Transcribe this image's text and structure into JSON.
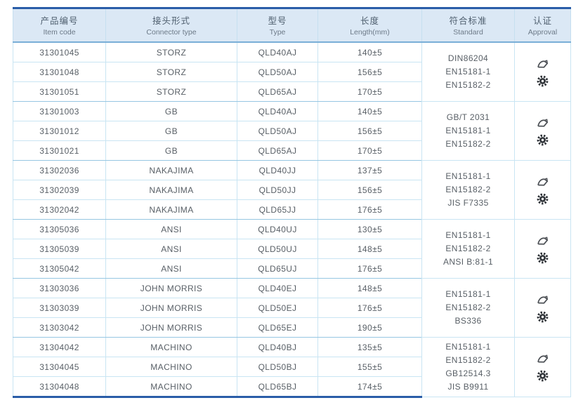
{
  "table": {
    "colors": {
      "frame_border": "#2a5da8",
      "header_bg": "#dbe8f5",
      "row_line": "#c9e5f3",
      "group_line": "#96c6e2",
      "text": "#585f66"
    },
    "header": {
      "columns": [
        {
          "zh": "产品编号",
          "en": "Item code"
        },
        {
          "zh": "接头形式",
          "en": "Connector type"
        },
        {
          "zh": "型号",
          "en": "Type"
        },
        {
          "zh": "长度",
          "en": "Length(mm)"
        },
        {
          "zh": "符合标准",
          "en": "Standard"
        },
        {
          "zh": "认证",
          "en": "Approval"
        }
      ]
    },
    "approval_icon_names": [
      "certificate-swoosh-icon",
      "rosette-seal-icon"
    ],
    "groups": [
      {
        "rows": [
          {
            "code": "31301045",
            "connector": "STORZ",
            "model": "QLD40AJ",
            "length": "140±5"
          },
          {
            "code": "31301048",
            "connector": "STORZ",
            "model": "QLD50AJ",
            "length": "156±5"
          },
          {
            "code": "31301051",
            "connector": "STORZ",
            "model": "QLD65AJ",
            "length": "170±5"
          }
        ],
        "standards": [
          "DIN86204",
          "EN15181-1",
          "EN15182-2"
        ]
      },
      {
        "rows": [
          {
            "code": "31301003",
            "connector": "GB",
            "model": "QLD40AJ",
            "length": "140±5"
          },
          {
            "code": "31301012",
            "connector": "GB",
            "model": "QLD50AJ",
            "length": "156±5"
          },
          {
            "code": "31301021",
            "connector": "GB",
            "model": "QLD65AJ",
            "length": "170±5"
          }
        ],
        "standards": [
          "GB/T 2031",
          "EN15181-1",
          "EN15182-2"
        ]
      },
      {
        "rows": [
          {
            "code": "31302036",
            "connector": "NAKAJIMA",
            "model": "QLD40JJ",
            "length": "137±5"
          },
          {
            "code": "31302039",
            "connector": "NAKAJIMA",
            "model": "QLD50JJ",
            "length": "156±5"
          },
          {
            "code": "31302042",
            "connector": "NAKAJIMA",
            "model": "QLD65JJ",
            "length": "176±5"
          }
        ],
        "standards": [
          "EN15181-1",
          "EN15182-2",
          "JIS F7335"
        ]
      },
      {
        "rows": [
          {
            "code": "31305036",
            "connector": "ANSI",
            "model": "QLD40UJ",
            "length": "130±5"
          },
          {
            "code": "31305039",
            "connector": "ANSI",
            "model": "QLD50UJ",
            "length": "148±5"
          },
          {
            "code": "31305042",
            "connector": "ANSI",
            "model": "QLD65UJ",
            "length": "176±5"
          }
        ],
        "standards": [
          "EN15181-1",
          "EN15182-2",
          "ANSI B:81-1"
        ]
      },
      {
        "rows": [
          {
            "code": "31303036",
            "connector": "JOHN MORRIS",
            "model": "QLD40EJ",
            "length": "148±5"
          },
          {
            "code": "31303039",
            "connector": "JOHN MORRIS",
            "model": "QLD50EJ",
            "length": "176±5"
          },
          {
            "code": "31303042",
            "connector": "JOHN MORRIS",
            "model": "QLD65EJ",
            "length": "190±5"
          }
        ],
        "standards": [
          "EN15181-1",
          "EN15182-2",
          "BS336"
        ]
      },
      {
        "rows": [
          {
            "code": "31304042",
            "connector": "MACHINO",
            "model": "QLD40BJ",
            "length": "135±5"
          },
          {
            "code": "31304045",
            "connector": "MACHINO",
            "model": "QLD50BJ",
            "length": "155±5"
          },
          {
            "code": "31304048",
            "connector": "MACHINO",
            "model": "QLD65BJ",
            "length": "174±5"
          }
        ],
        "standards": [
          "EN15181-1",
          "EN15182-2",
          "GB12514.3",
          "JIS B9911"
        ]
      }
    ]
  }
}
